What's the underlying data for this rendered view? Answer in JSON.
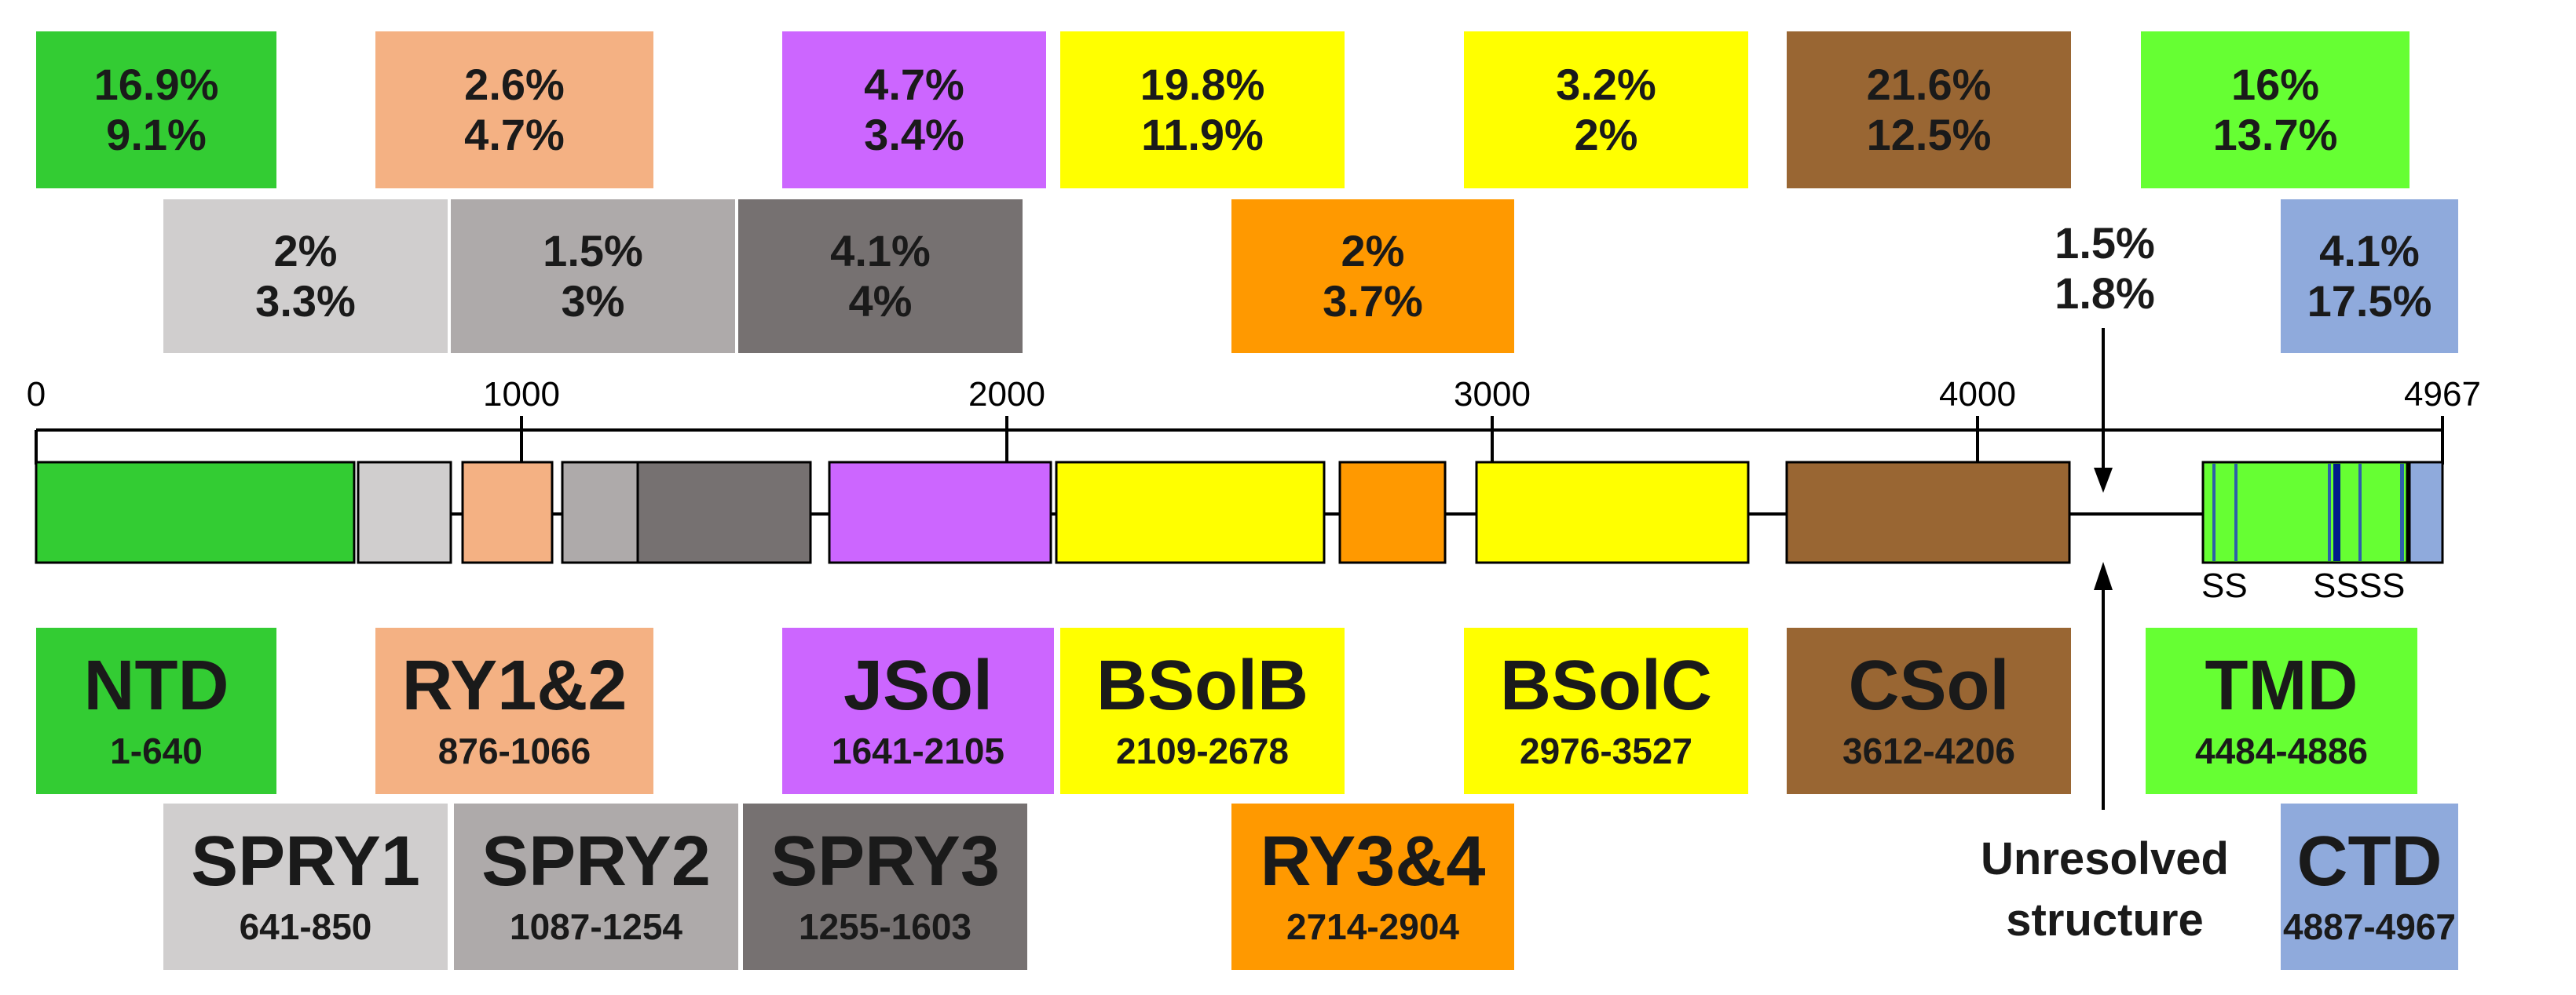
{
  "colors": {
    "NTD": "#33cc33",
    "SPRY1": "#d0cece",
    "RY12": "#f4b183",
    "SPRY2": "#aeaaaa",
    "SPRY3": "#767171",
    "JSol": "#cc66ff",
    "BSolB": "#ffff00",
    "RY34": "#ff9900",
    "BSolC": "#ffff00",
    "CSol": "#996633",
    "TMD": "#66ff33",
    "CTD": "#8faadc",
    "helix": "#2e5faa",
    "helix_dark": "#001a8c"
  },
  "axis": {
    "max": 4967,
    "ticks": [
      0,
      1000,
      2000,
      3000,
      4000,
      4967
    ],
    "tick_labels": [
      "0",
      "1000",
      "2000",
      "3000",
      "4000",
      "4967"
    ]
  },
  "domains": [
    {
      "id": "NTD",
      "name": "NTD",
      "range": "1-640",
      "pct1": "16.9%",
      "pct2": "9.1%",
      "color": "#33cc33"
    },
    {
      "id": "SPRY1",
      "name": "SPRY1",
      "range": "641-850",
      "pct1": "2%",
      "pct2": "3.3%",
      "color": "#d0cece"
    },
    {
      "id": "RY12",
      "name": "RY1&2",
      "range": "876-1066",
      "pct1": "2.6%",
      "pct2": "4.7%",
      "color": "#f4b183"
    },
    {
      "id": "SPRY2",
      "name": "SPRY2",
      "range": "1087-1254",
      "pct1": "1.5%",
      "pct2": "3%",
      "color": "#aeaaaa"
    },
    {
      "id": "SPRY3",
      "name": "SPRY3",
      "range": "1255-1603",
      "pct1": "4.1%",
      "pct2": "4%",
      "color": "#767171"
    },
    {
      "id": "JSol",
      "name": "JSol",
      "range": "1641-2105",
      "pct1": "4.7%",
      "pct2": "3.4%",
      "color": "#cc66ff"
    },
    {
      "id": "BSolB",
      "name": "BSolB",
      "range": "2109-2678",
      "pct1": "19.8%",
      "pct2": "11.9%",
      "color": "#ffff00"
    },
    {
      "id": "RY34",
      "name": "RY3&4",
      "range": "2714-2904",
      "pct1": "2%",
      "pct2": "3.7%",
      "color": "#ff9900"
    },
    {
      "id": "BSolC",
      "name": "BSolC",
      "range": "2976-3527",
      "pct1": "3.2%",
      "pct2": "2%",
      "color": "#ffff00"
    },
    {
      "id": "CSol",
      "name": "CSol",
      "range": "3612-4206",
      "pct1": "21.6%",
      "pct2": "12.5%",
      "color": "#996633"
    },
    {
      "id": "TMD",
      "name": "TMD",
      "range": "4484-4886",
      "pct1": "16%",
      "pct2": "13.7%",
      "color": "#66ff33"
    },
    {
      "id": "CTD",
      "name": "CTD",
      "range": "4887-4967",
      "pct1": "4.1%",
      "pct2": "17.5%",
      "color": "#8faadc"
    }
  ],
  "unresolved": {
    "label_line1": "Unresolved",
    "label_line2": "structure",
    "pct1": "1.5%",
    "pct2": "1.8%"
  },
  "s_labels": {
    "left": "SS",
    "right": "SSSS"
  }
}
